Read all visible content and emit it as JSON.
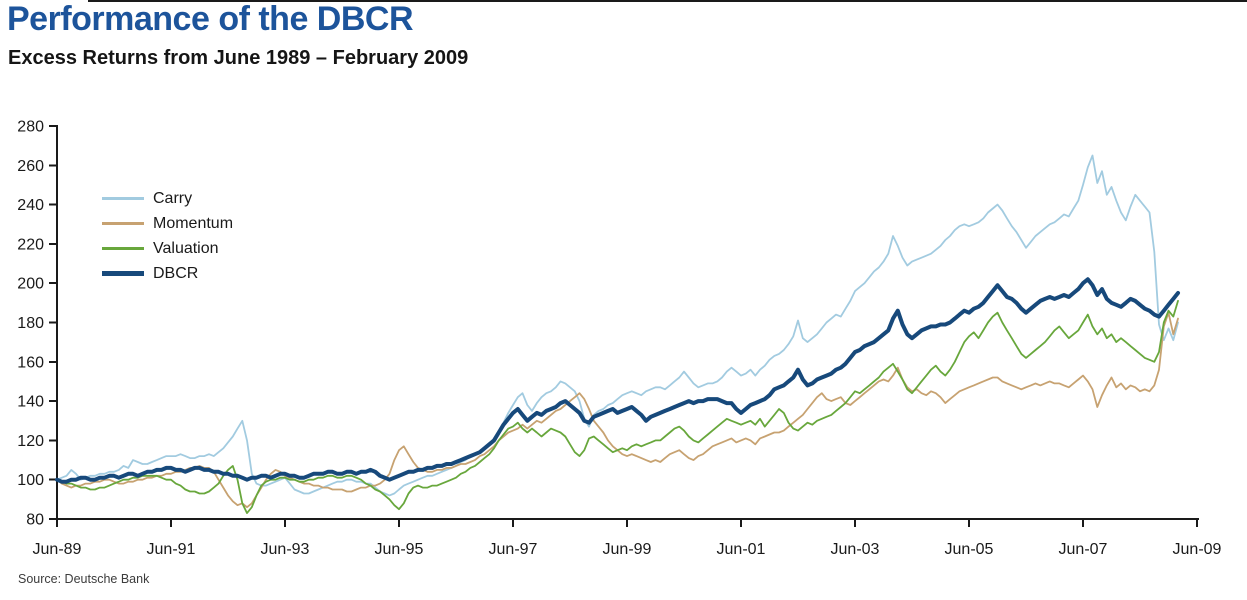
{
  "header": {
    "title": "Performance of the DBCR",
    "subtitle": "Excess Returns from June 1989 – February 2009"
  },
  "footer": {
    "source": "Source: Deutsche Bank"
  },
  "chart_data": {
    "type": "line",
    "title": "Performance of the DBCR",
    "subtitle": "Excess Returns from June 1989 – February 2009",
    "grid": false,
    "legend_position": "upper-left-inside",
    "ylim": [
      80,
      280
    ],
    "yticks": [
      80,
      100,
      120,
      140,
      160,
      180,
      200,
      220,
      240,
      260,
      280
    ],
    "x_start": "Jun-1989",
    "x_end": "Feb-2009",
    "x_step_months": 1,
    "x_total_months": 240,
    "x_tick_months": [
      0,
      24,
      48,
      72,
      96,
      120,
      144,
      168,
      192,
      216,
      240
    ],
    "x_tick_labels": [
      "Jun-89",
      "Jun-91",
      "Jun-93",
      "Jun-95",
      "Jun-97",
      "Jun-99",
      "Jun-01",
      "Jun-03",
      "Jun-05",
      "Jun-07",
      "Jun-09"
    ],
    "series": [
      {
        "name": "Carry",
        "color": "#a2cbe0",
        "width": 1.8,
        "values": [
          100,
          101,
          102,
          105,
          103,
          100,
          101,
          102,
          102,
          103,
          103,
          104,
          104,
          105,
          107,
          106,
          110,
          109,
          108,
          108,
          109,
          110,
          111,
          112,
          112,
          112,
          113,
          112,
          111,
          111,
          112,
          112,
          113,
          112,
          114,
          116,
          119,
          122,
          126,
          130,
          120,
          103,
          98,
          97,
          97,
          98,
          99,
          100,
          101,
          98,
          95,
          94,
          93,
          93,
          94,
          95,
          96,
          97,
          98,
          99,
          99,
          100,
          100,
          99,
          99,
          98,
          98,
          96,
          94,
          93,
          92,
          93,
          95,
          97,
          98,
          99,
          100,
          101,
          102,
          102,
          103,
          104,
          105,
          106,
          107,
          109,
          110,
          112,
          113,
          114,
          116,
          118,
          121,
          125,
          129,
          134,
          138,
          142,
          144,
          138,
          135,
          139,
          142,
          144,
          145,
          147,
          150,
          149,
          147,
          145,
          140,
          131,
          127,
          133,
          135,
          136,
          138,
          139,
          141,
          143,
          144,
          145,
          144,
          143,
          145,
          146,
          147,
          147,
          146,
          148,
          150,
          152,
          155,
          152,
          149,
          147,
          148,
          149,
          149,
          150,
          152,
          155,
          157,
          155,
          153,
          154,
          156,
          153,
          156,
          158,
          161,
          163,
          164,
          166,
          169,
          173,
          181,
          172,
          170,
          172,
          174,
          177,
          180,
          182,
          184,
          183,
          187,
          191,
          196,
          198,
          200,
          203,
          206,
          208,
          211,
          215,
          224,
          219,
          213,
          209,
          211,
          212,
          213,
          214,
          215,
          217,
          219,
          222,
          224,
          227,
          229,
          230,
          229,
          230,
          231,
          233,
          236,
          238,
          240,
          237,
          233,
          229,
          226,
          222,
          218,
          221,
          224,
          226,
          228,
          230,
          231,
          233,
          235,
          234,
          238,
          242,
          250,
          259,
          265,
          251,
          257,
          245,
          249,
          242,
          236,
          232,
          239,
          245,
          242,
          239,
          236,
          216,
          179,
          171,
          177,
          171,
          180
        ]
      },
      {
        "name": "Momentum",
        "color": "#c7a271",
        "width": 1.8,
        "values": [
          100,
          98,
          97,
          96,
          97,
          97,
          98,
          98,
          99,
          99,
          100,
          100,
          99,
          98,
          98,
          99,
          99,
          100,
          100,
          101,
          101,
          102,
          102,
          103,
          103,
          104,
          104,
          105,
          106,
          106,
          107,
          106,
          106,
          104,
          100,
          96,
          92,
          89,
          87,
          88,
          86,
          88,
          92,
          96,
          100,
          103,
          105,
          104,
          102,
          101,
          100,
          99,
          98,
          98,
          97,
          97,
          96,
          96,
          95,
          95,
          95,
          94,
          94,
          95,
          96,
          96,
          97,
          97,
          98,
          100,
          103,
          110,
          115,
          117,
          113,
          109,
          106,
          105,
          104,
          104,
          105,
          105,
          106,
          106,
          107,
          108,
          108,
          109,
          110,
          112,
          113,
          115,
          117,
          120,
          122,
          124,
          125,
          126,
          128,
          126,
          128,
          130,
          129,
          131,
          133,
          135,
          136,
          138,
          140,
          142,
          144,
          141,
          136,
          130,
          127,
          124,
          120,
          117,
          115,
          113,
          112,
          113,
          112,
          111,
          110,
          109,
          110,
          109,
          111,
          113,
          114,
          115,
          113,
          111,
          110,
          112,
          113,
          115,
          117,
          118,
          119,
          120,
          121,
          119,
          120,
          121,
          120,
          118,
          121,
          122,
          123,
          124,
          124,
          125,
          127,
          129,
          131,
          133,
          136,
          139,
          142,
          144,
          141,
          140,
          141,
          142,
          139,
          138,
          140,
          142,
          144,
          146,
          148,
          150,
          151,
          150,
          153,
          157,
          151,
          147,
          145,
          146,
          144,
          143,
          145,
          144,
          142,
          139,
          141,
          143,
          145,
          146,
          147,
          148,
          149,
          150,
          151,
          152,
          152,
          150,
          149,
          148,
          147,
          146,
          147,
          148,
          149,
          148,
          149,
          150,
          149,
          149,
          148,
          147,
          149,
          151,
          153,
          150,
          146,
          137,
          143,
          148,
          152,
          147,
          149,
          146,
          148,
          147,
          145,
          146,
          145,
          148,
          156,
          178,
          185,
          174,
          182
        ]
      },
      {
        "name": "Valuation",
        "color": "#68a73c",
        "width": 1.8,
        "values": [
          100,
          99,
          98,
          98,
          97,
          96,
          96,
          95,
          95,
          96,
          96,
          97,
          98,
          99,
          100,
          100,
          101,
          101,
          102,
          102,
          102,
          102,
          101,
          100,
          100,
          98,
          97,
          95,
          94,
          94,
          93,
          93,
          94,
          96,
          98,
          102,
          105,
          107,
          100,
          88,
          83,
          86,
          92,
          97,
          99,
          100,
          100,
          101,
          101,
          100,
          100,
          99,
          99,
          100,
          100,
          101,
          101,
          102,
          102,
          101,
          101,
          102,
          102,
          101,
          100,
          98,
          97,
          95,
          94,
          92,
          90,
          87,
          85,
          88,
          93,
          96,
          97,
          96,
          96,
          97,
          97,
          98,
          99,
          100,
          101,
          103,
          104,
          106,
          107,
          109,
          111,
          113,
          116,
          120,
          123,
          126,
          127,
          129,
          126,
          124,
          126,
          124,
          122,
          124,
          126,
          125,
          124,
          122,
          118,
          114,
          112,
          115,
          121,
          122,
          120,
          118,
          116,
          114,
          115,
          116,
          115,
          117,
          118,
          117,
          118,
          119,
          120,
          120,
          122,
          124,
          126,
          127,
          125,
          122,
          120,
          119,
          121,
          123,
          125,
          127,
          129,
          131,
          130,
          129,
          128,
          129,
          130,
          128,
          131,
          127,
          130,
          133,
          136,
          134,
          129,
          126,
          125,
          127,
          129,
          128,
          130,
          131,
          132,
          133,
          135,
          137,
          139,
          142,
          145,
          144,
          146,
          148,
          150,
          152,
          155,
          157,
          159,
          155,
          151,
          146,
          144,
          147,
          150,
          153,
          156,
          158,
          155,
          153,
          156,
          160,
          165,
          170,
          173,
          175,
          172,
          176,
          180,
          183,
          185,
          180,
          176,
          172,
          168,
          164,
          162,
          164,
          166,
          168,
          170,
          173,
          176,
          178,
          175,
          172,
          174,
          176,
          180,
          184,
          178,
          174,
          177,
          172,
          174,
          170,
          172,
          170,
          168,
          166,
          164,
          162,
          161,
          160,
          165,
          180,
          186,
          183,
          191
        ]
      },
      {
        "name": "DBCR",
        "color": "#17497b",
        "width": 4,
        "values": [
          100,
          99,
          99,
          100,
          100,
          101,
          101,
          100,
          100,
          101,
          101,
          102,
          102,
          101,
          102,
          103,
          103,
          102,
          103,
          104,
          104,
          105,
          105,
          106,
          106,
          105,
          105,
          104,
          105,
          106,
          106,
          105,
          105,
          104,
          104,
          103,
          103,
          102,
          102,
          101,
          100,
          101,
          101,
          102,
          102,
          101,
          102,
          103,
          103,
          102,
          102,
          101,
          101,
          102,
          103,
          103,
          103,
          104,
          104,
          103,
          103,
          104,
          104,
          103,
          104,
          104,
          105,
          104,
          102,
          101,
          100,
          101,
          102,
          103,
          104,
          104,
          105,
          105,
          106,
          106,
          107,
          107,
          108,
          108,
          109,
          110,
          111,
          112,
          113,
          114,
          116,
          118,
          120,
          124,
          128,
          131,
          134,
          136,
          133,
          130,
          132,
          134,
          133,
          135,
          136,
          137,
          139,
          140,
          138,
          136,
          134,
          130,
          129,
          132,
          133,
          134,
          135,
          136,
          134,
          135,
          136,
          137,
          135,
          133,
          130,
          132,
          133,
          134,
          135,
          136,
          137,
          138,
          139,
          140,
          139,
          140,
          140,
          141,
          141,
          141,
          140,
          139,
          139,
          136,
          134,
          136,
          138,
          139,
          140,
          141,
          143,
          146,
          147,
          148,
          150,
          152,
          156,
          151,
          148,
          149,
          151,
          152,
          153,
          154,
          156,
          157,
          159,
          162,
          165,
          166,
          168,
          169,
          170,
          172,
          174,
          176,
          182,
          186,
          179,
          174,
          172,
          174,
          176,
          177,
          178,
          178,
          179,
          179,
          180,
          182,
          184,
          186,
          185,
          187,
          188,
          190,
          193,
          196,
          199,
          196,
          193,
          192,
          190,
          187,
          185,
          187,
          189,
          191,
          192,
          193,
          192,
          193,
          194,
          193,
          195,
          197,
          200,
          202,
          199,
          194,
          197,
          192,
          190,
          189,
          188,
          190,
          192,
          191,
          189,
          187,
          186,
          184,
          183,
          186,
          189,
          192,
          195
        ]
      }
    ]
  }
}
